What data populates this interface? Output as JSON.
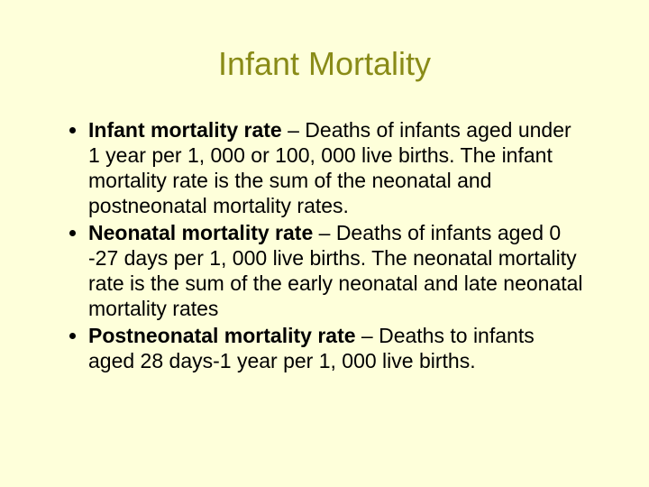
{
  "colors": {
    "background": "#feffda",
    "title": "#898b17",
    "text": "#000000"
  },
  "title": "Infant Mortality",
  "bullets": [
    {
      "term": "Infant mortality rate",
      "definition": " – Deaths of infants aged under 1 year per 1, 000 or 100, 000 live births. The infant mortality rate is the sum of the neonatal and postneonatal mortality rates."
    },
    {
      "term": "Neonatal mortality rate",
      "definition": " – Deaths of infants aged 0 -27 days per 1, 000 live births. The neonatal mortality rate is the sum of the early neonatal and late neonatal mortality rates"
    },
    {
      "term": "Postneonatal mortality rate",
      "definition": " – Deaths to infants aged 28 days-1 year per 1, 000 live births."
    }
  ]
}
